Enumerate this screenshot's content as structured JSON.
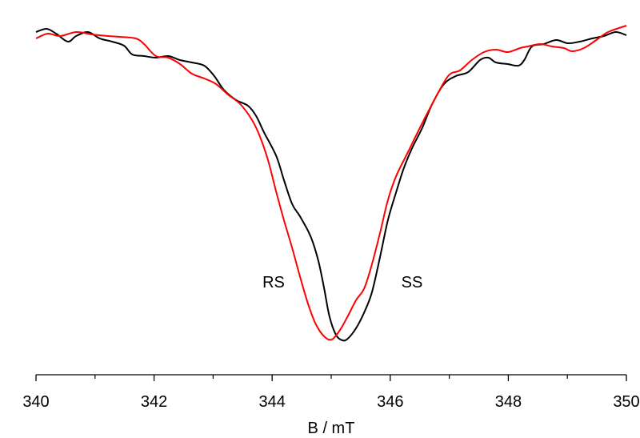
{
  "chart_data": {
    "type": "line",
    "x_label": "B / mT",
    "xlim": [
      340,
      350
    ],
    "xticks": [
      340,
      342,
      344,
      346,
      348,
      350
    ],
    "xminor_ticks": [
      341,
      343,
      345,
      347,
      349
    ],
    "ylim": [
      0,
      450
    ],
    "grid": false,
    "series": [
      {
        "name": "SS",
        "color": "#000000",
        "x": [
          340.0,
          340.18,
          340.34,
          340.54,
          340.68,
          340.88,
          341.08,
          341.29,
          341.49,
          341.63,
          341.83,
          342.03,
          342.24,
          342.44,
          342.64,
          342.85,
          343.02,
          343.18,
          343.39,
          343.59,
          343.73,
          343.86,
          344.07,
          344.2,
          344.34,
          344.47,
          344.65,
          344.78,
          344.88,
          344.97,
          345.08,
          345.19,
          345.28,
          345.42,
          345.56,
          345.69,
          345.83,
          345.96,
          346.1,
          346.23,
          346.37,
          346.54,
          346.71,
          346.91,
          347.11,
          347.32,
          347.52,
          347.66,
          347.79,
          347.99,
          348.17,
          348.27,
          348.4,
          348.6,
          348.81,
          349.01,
          349.21,
          349.42,
          349.62,
          349.82,
          350.0
        ],
        "values": [
          428,
          432,
          426,
          416,
          423,
          428,
          420,
          416,
          411,
          400,
          398,
          396,
          398,
          393,
          390,
          386,
          373,
          356,
          343,
          336,
          323,
          303,
          273,
          243,
          213,
          198,
          173,
          143,
          108,
          73,
          50,
          43,
          45,
          58,
          78,
          103,
          148,
          193,
          228,
          258,
          283,
          308,
          338,
          363,
          373,
          378,
          393,
          396,
          390,
          388,
          386,
          393,
          410,
          413,
          418,
          414,
          416,
          420,
          423,
          428,
          424
        ]
      },
      {
        "name": "RS",
        "color": "#ff0000",
        "x": [
          340.0,
          340.2,
          340.41,
          340.68,
          340.95,
          341.22,
          341.42,
          341.69,
          341.83,
          342.03,
          342.24,
          342.44,
          342.64,
          342.85,
          343.05,
          343.25,
          343.46,
          343.66,
          343.79,
          343.93,
          344.07,
          344.2,
          344.34,
          344.47,
          344.61,
          344.74,
          344.88,
          345.01,
          345.15,
          345.28,
          345.42,
          345.56,
          345.69,
          345.83,
          345.96,
          346.1,
          346.3,
          346.5,
          346.71,
          346.98,
          347.18,
          347.38,
          347.59,
          347.79,
          347.99,
          348.2,
          348.33,
          348.54,
          348.74,
          348.94,
          349.08,
          349.28,
          349.49,
          349.69,
          350.0
        ],
        "values": [
          420,
          426,
          423,
          428,
          425,
          423,
          422,
          420,
          413,
          398,
          396,
          388,
          376,
          370,
          363,
          350,
          338,
          318,
          298,
          268,
          228,
          193,
          158,
          123,
          88,
          63,
          48,
          44,
          56,
          73,
          93,
          108,
          138,
          178,
          218,
          248,
          278,
          308,
          338,
          373,
          380,
          393,
          403,
          406,
          403,
          408,
          410,
          413,
          410,
          408,
          404,
          408,
          418,
          428,
          436
        ]
      }
    ]
  }
}
